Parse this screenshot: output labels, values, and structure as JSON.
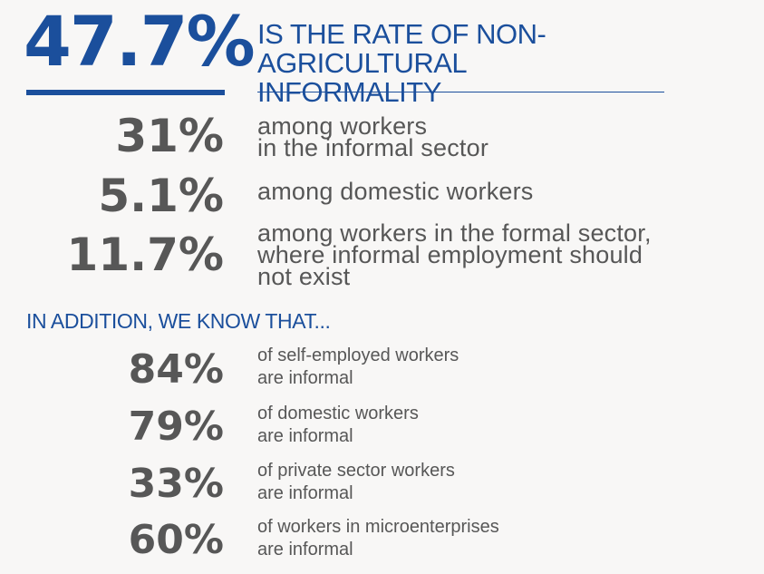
{
  "headline": {
    "value": "47.7%",
    "text_line1": "IS THE RATE OF NON-AGRICULTURAL",
    "text_line2": "INFORMALITY"
  },
  "breakdown": [
    {
      "value": "31%",
      "line1": "among workers",
      "line2": "in the informal sector",
      "line3": ""
    },
    {
      "value": "5.1%",
      "line1": "among domestic workers",
      "line2": "",
      "line3": ""
    },
    {
      "value": "11.7%",
      "line1": "among workers in the formal sector,",
      "line2": "where informal employment should",
      "line3": "not exist"
    }
  ],
  "section_heading": "IN ADDITION, WE KNOW THAT...",
  "facts": [
    {
      "value": "84%",
      "line1": "of self-employed workers",
      "line2": "are informal"
    },
    {
      "value": "79%",
      "line1": "of domestic workers",
      "line2": "are informal"
    },
    {
      "value": "33%",
      "line1": "of private sector workers",
      "line2": "are informal"
    },
    {
      "value": "60%",
      "line1": "of workers in microenterprises",
      "line2": "are informal"
    }
  ],
  "colors": {
    "accent": "#1b4f9c",
    "text": "#575757",
    "background": "#f8f7f6"
  }
}
